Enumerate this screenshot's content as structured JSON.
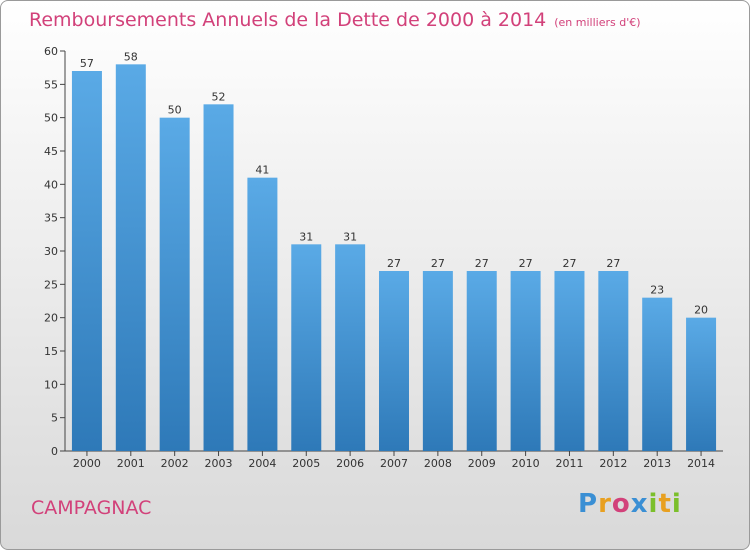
{
  "chart_data": {
    "type": "bar",
    "title": "Remboursements Annuels de la Dette de 2000 à 2014",
    "unit": "(en milliers d'€)",
    "categories": [
      "2000",
      "2001",
      "2002",
      "2003",
      "2004",
      "2005",
      "2006",
      "2007",
      "2008",
      "2009",
      "2010",
      "2011",
      "2012",
      "2013",
      "2014"
    ],
    "values": [
      57,
      58,
      50,
      52,
      41,
      31,
      31,
      27,
      27,
      27,
      27,
      27,
      27,
      23,
      20
    ],
    "ylim": [
      0,
      60
    ],
    "yticks": [
      0,
      5,
      10,
      15,
      20,
      25,
      30,
      35,
      40,
      45,
      50,
      55,
      60
    ],
    "grid": false,
    "bar_color_top": "#5aaae6",
    "bar_color_bottom": "#2e79b8"
  },
  "commune": "CAMPAGNAC",
  "logo": {
    "letters": [
      "P",
      "r",
      "o",
      "x",
      "i",
      "t",
      "i"
    ],
    "colors": [
      "#3a8fd4",
      "#e8a020",
      "#d2417a",
      "#3a8fd4",
      "#7bbf2a",
      "#e8a020",
      "#7bbf2a"
    ]
  }
}
